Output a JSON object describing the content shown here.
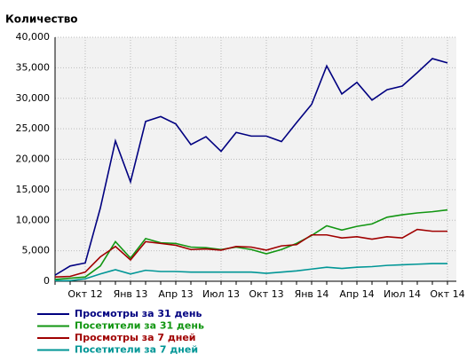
{
  "chart_data": {
    "type": "line",
    "title": "Количество",
    "categories": [
      "Авг 12",
      "Сен 12",
      "Окт 12",
      "Ноя 12",
      "Дек 12",
      "Янв 13",
      "Фев 13",
      "Мар 13",
      "Апр 13",
      "Май 13",
      "Июн 13",
      "Июл 13",
      "Авг 13",
      "Сен 13",
      "Окт 13",
      "Ноя 13",
      "Дек 13",
      "Янв 14",
      "Фев 14",
      "Мар 14",
      "Апр 14",
      "Май 14",
      "Июн 14",
      "Июл 14",
      "Авг 14",
      "Сен 14",
      "Окт 14"
    ],
    "category_labels": [
      null,
      null,
      "Окт 12",
      null,
      null,
      "Янв 13",
      null,
      null,
      "Апр 13",
      null,
      null,
      "Июл 13",
      null,
      null,
      "Окт 13",
      null,
      null,
      "Янв 14",
      null,
      null,
      "Апр 14",
      null,
      null,
      "Июл 14",
      null,
      null,
      "Окт 14"
    ],
    "ylim": [
      0,
      40000
    ],
    "yticks": [
      0,
      {
        "value": 5000,
        "label": "5,000"
      },
      {
        "value": 10000,
        "label": "10,000"
      },
      {
        "value": 15000,
        "label": "15,000"
      },
      {
        "value": 20000,
        "label": "20,000"
      },
      {
        "value": 25000,
        "label": "25,000"
      },
      {
        "value": 30000,
        "label": "30,000"
      },
      {
        "value": 35000,
        "label": "35,000"
      },
      {
        "value": 40000,
        "label": "40,000"
      }
    ],
    "grid": true,
    "series": [
      {
        "name": "Просмотры за 31 день",
        "color": "#000080",
        "values": [
          1000,
          2500,
          3000,
          12000,
          23000,
          16300,
          26200,
          27000,
          25800,
          22400,
          23700,
          21300,
          24400,
          23800,
          23800,
          22900,
          26000,
          29000,
          35300,
          30700,
          32600,
          29700,
          31400,
          32000,
          34200,
          36500,
          35800
        ]
      },
      {
        "name": "Посетители за 31 день",
        "color": "#129612",
        "values": [
          300,
          500,
          700,
          2500,
          6500,
          3800,
          7000,
          6300,
          6200,
          5600,
          5500,
          5200,
          5600,
          5200,
          4500,
          5200,
          6200,
          7500,
          9100,
          8400,
          9000,
          9400,
          10500,
          10900,
          11200,
          11400,
          11700
        ]
      },
      {
        "name": "Просмотры за 7 дней",
        "color": "#a00000",
        "values": [
          700,
          800,
          1500,
          4000,
          5700,
          3500,
          6500,
          6200,
          5900,
          5200,
          5300,
          5100,
          5700,
          5600,
          5100,
          5800,
          6000,
          7600,
          7600,
          7100,
          7300,
          6900,
          7300,
          7100,
          8500,
          8200,
          8200
        ]
      },
      {
        "name": "Посетители за 7 дней",
        "color": "#009696",
        "values": [
          100,
          100,
          400,
          1200,
          1900,
          1200,
          1800,
          1600,
          1600,
          1500,
          1500,
          1500,
          1500,
          1500,
          1300,
          1500,
          1700,
          2000,
          2300,
          2100,
          2300,
          2400,
          2600,
          2700,
          2800,
          2900,
          2900
        ]
      }
    ]
  }
}
